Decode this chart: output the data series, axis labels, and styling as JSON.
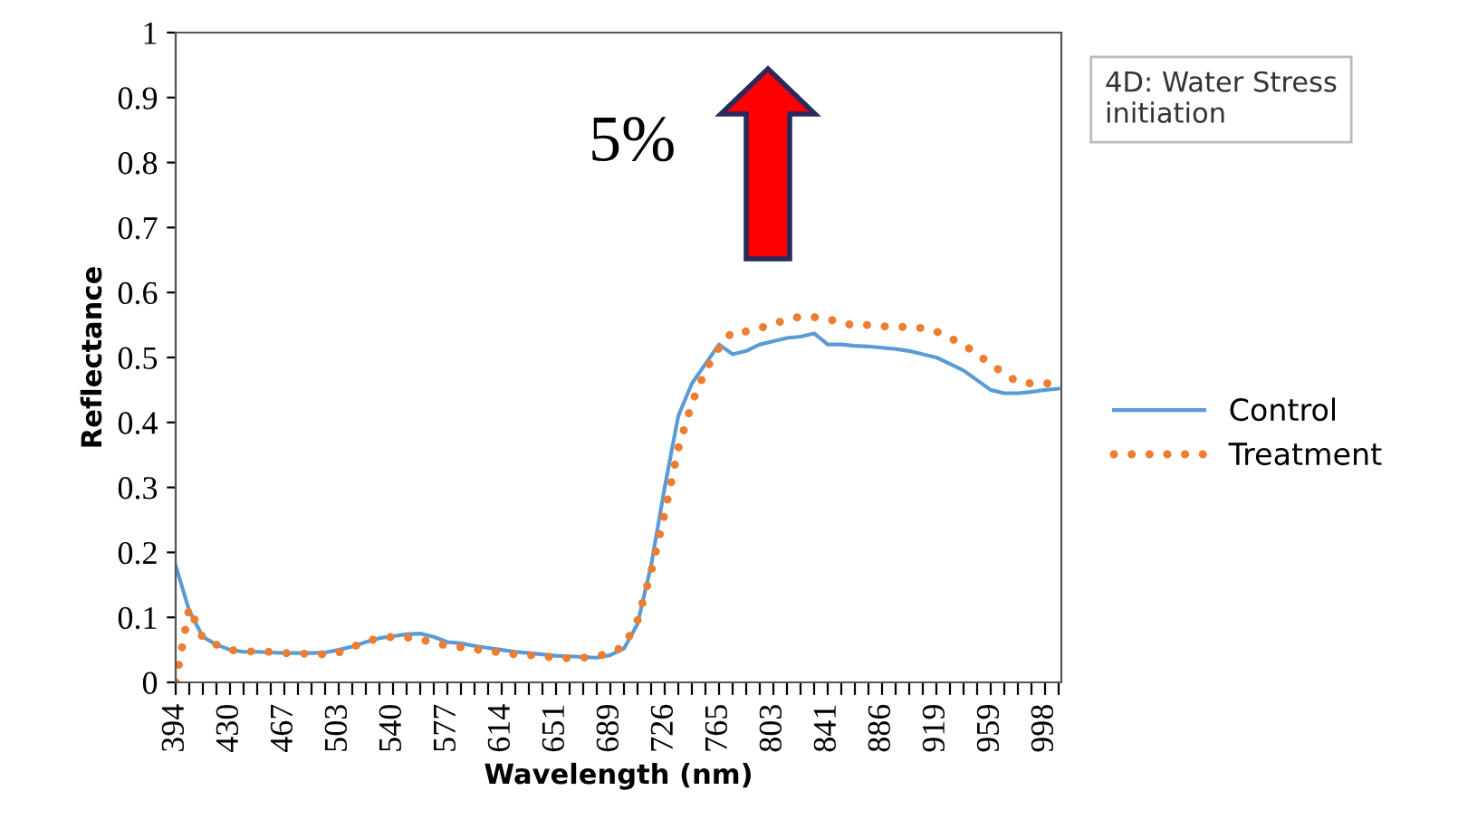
{
  "chart_data": {
    "type": "line",
    "title": "4D: Water Stress initiation",
    "xlabel": "Wavelength (nm)",
    "ylabel": "Reflectance",
    "annotations": [
      "5%"
    ],
    "categories": [
      "394",
      null,
      null,
      null,
      "430",
      null,
      null,
      null,
      "467",
      null,
      null,
      null,
      "503",
      null,
      null,
      null,
      "540",
      null,
      null,
      null,
      "577",
      null,
      null,
      null,
      "614",
      null,
      null,
      null,
      "651",
      null,
      null,
      null,
      "689",
      null,
      null,
      null,
      "726",
      null,
      null,
      null,
      "765",
      null,
      null,
      null,
      "803",
      null,
      null,
      null,
      "841",
      null,
      null,
      null,
      "886",
      null,
      null,
      null,
      "919",
      null,
      null,
      null,
      "959",
      null,
      null,
      null,
      "998",
      null
    ],
    "series": [
      {
        "name": "Control",
        "color": "#5b9bd5",
        "line_style": "solid",
        "values": [
          0.18,
          0.11,
          0.07,
          0.058,
          0.05,
          0.047,
          0.047,
          0.046,
          0.045,
          0.045,
          0.045,
          0.046,
          0.05,
          0.055,
          0.062,
          0.068,
          0.071,
          0.074,
          0.075,
          0.07,
          0.062,
          0.06,
          0.056,
          0.053,
          0.05,
          0.047,
          0.045,
          0.043,
          0.041,
          0.04,
          0.039,
          0.038,
          0.042,
          0.052,
          0.09,
          0.18,
          0.3,
          0.41,
          0.46,
          0.49,
          0.52,
          0.505,
          0.51,
          0.52,
          0.525,
          0.53,
          0.532,
          0.537,
          0.52,
          0.52,
          0.518,
          0.517,
          0.515,
          0.513,
          0.51,
          0.505,
          0.5,
          0.49,
          0.48,
          0.465,
          0.45,
          0.445,
          0.445,
          0.447,
          0.45,
          0.452
        ]
      },
      {
        "name": "Treatment",
        "color": "#ed7d31",
        "line_style": "dotted",
        "values": [
          0,
          0.115,
          0.068,
          0.058,
          0.05,
          0.047,
          0.048,
          0.047,
          0.045,
          0.044,
          0.044,
          0.043,
          0.046,
          0.054,
          0.063,
          0.068,
          0.07,
          0.069,
          0.067,
          0.06,
          0.057,
          0.054,
          0.051,
          0.048,
          0.046,
          0.043,
          0.042,
          0.04,
          0.038,
          0.037,
          0.038,
          0.04,
          0.046,
          0.055,
          0.095,
          0.17,
          0.26,
          0.36,
          0.43,
          0.48,
          0.515,
          0.54,
          0.54,
          0.545,
          0.552,
          0.558,
          0.563,
          0.562,
          0.56,
          0.552,
          0.55,
          0.55,
          0.548,
          0.547,
          0.547,
          0.545,
          0.54,
          0.53,
          0.52,
          0.505,
          0.49,
          0.475,
          0.462,
          0.46,
          0.46,
          0.46
        ]
      }
    ],
    "ylim": [
      0,
      1
    ],
    "yticks": [
      0,
      0.1,
      0.2,
      0.3,
      0.4,
      0.5,
      0.6,
      0.7,
      0.8,
      0.9,
      1
    ],
    "grid": false,
    "legend": "right"
  }
}
